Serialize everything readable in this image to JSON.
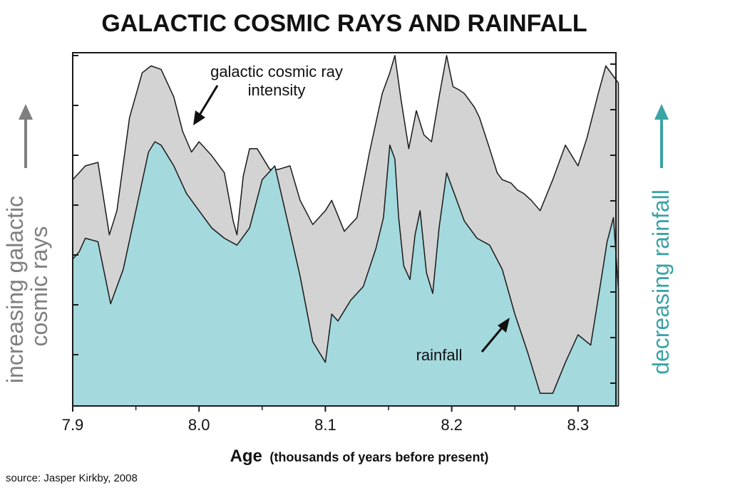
{
  "chart_data": {
    "type": "area",
    "title": "GALACTIC COSMIC RAYS AND RAINFALL",
    "xlabel": "Age",
    "xlabel_note": "(thousands of years before present)",
    "xlim": [
      7.9,
      8.33
    ],
    "xticks": [
      7.9,
      8.0,
      8.1,
      8.2,
      8.3
    ],
    "xtick_labels": [
      "7.9",
      "8.0",
      "8.1",
      "8.2",
      "8.3"
    ],
    "ylabel_left": "increasing galactic cosmic rays",
    "ylabel_right": "decreasing rainfall",
    "ylim": [
      0,
      1
    ],
    "series": [
      {
        "name": "galactic cosmic ray intensity",
        "color": "#d3d3d3",
        "x": [
          7.9,
          7.905,
          7.91,
          7.92,
          7.929,
          7.935,
          7.945,
          7.955,
          7.962,
          7.97,
          7.98,
          7.987,
          7.994,
          8.0,
          8.01,
          8.02,
          8.027,
          8.03,
          8.035,
          8.04,
          8.046,
          8.056,
          8.063,
          8.072,
          8.08,
          8.09,
          8.1,
          8.105,
          8.115,
          8.125,
          8.135,
          8.145,
          8.151,
          8.155,
          8.16,
          8.166,
          8.172,
          8.178,
          8.184,
          8.19,
          8.196,
          8.201,
          8.206,
          8.21,
          8.218,
          8.222,
          8.23,
          8.236,
          8.24,
          8.247,
          8.252,
          8.257,
          8.263,
          8.27,
          8.28,
          8.29,
          8.3,
          8.307,
          8.316,
          8.322,
          8.328,
          8.332
        ],
        "values": [
          0.64,
          0.66,
          0.68,
          0.69,
          0.48,
          0.55,
          0.82,
          0.95,
          0.97,
          0.96,
          0.88,
          0.78,
          0.72,
          0.75,
          0.71,
          0.66,
          0.52,
          0.48,
          0.65,
          0.73,
          0.73,
          0.67,
          0.67,
          0.68,
          0.58,
          0.51,
          0.55,
          0.58,
          0.49,
          0.53,
          0.72,
          0.89,
          0.95,
          1.0,
          0.87,
          0.73,
          0.84,
          0.77,
          0.75,
          0.88,
          1.0,
          0.91,
          0.9,
          0.89,
          0.85,
          0.82,
          0.73,
          0.66,
          0.64,
          0.63,
          0.61,
          0.6,
          0.58,
          0.55,
          0.64,
          0.74,
          0.68,
          0.76,
          0.89,
          0.97,
          0.94,
          0.92
        ]
      },
      {
        "name": "rainfall",
        "color": "#a4d9de",
        "x": [
          7.9,
          7.905,
          7.91,
          7.92,
          7.93,
          7.94,
          7.95,
          7.96,
          7.965,
          7.97,
          7.98,
          7.99,
          8.0,
          8.01,
          8.02,
          8.03,
          8.04,
          8.05,
          8.06,
          8.07,
          8.08,
          8.09,
          8.1,
          8.105,
          8.11,
          8.12,
          8.13,
          8.14,
          8.146,
          8.151,
          8.155,
          8.158,
          8.162,
          8.167,
          8.171,
          8.175,
          8.18,
          8.185,
          8.19,
          8.193,
          8.196,
          8.2,
          8.21,
          8.22,
          8.23,
          8.24,
          8.25,
          8.26,
          8.27,
          8.28,
          8.29,
          8.3,
          8.31,
          8.317,
          8.323,
          8.328,
          8.332
        ],
        "values": [
          0.41,
          0.43,
          0.47,
          0.46,
          0.28,
          0.38,
          0.55,
          0.72,
          0.75,
          0.74,
          0.68,
          0.6,
          0.55,
          0.5,
          0.47,
          0.45,
          0.5,
          0.64,
          0.68,
          0.52,
          0.36,
          0.17,
          0.11,
          0.25,
          0.23,
          0.29,
          0.33,
          0.44,
          0.53,
          0.74,
          0.7,
          0.53,
          0.39,
          0.35,
          0.48,
          0.55,
          0.37,
          0.31,
          0.5,
          0.58,
          0.66,
          0.62,
          0.52,
          0.47,
          0.45,
          0.38,
          0.25,
          0.14,
          0.02,
          0.02,
          0.11,
          0.19,
          0.16,
          0.32,
          0.46,
          0.53,
          0.32
        ]
      }
    ],
    "annotations": [
      {
        "text_lines": [
          "galactic cosmic ray",
          "intensity"
        ],
        "target": "galactic cosmic ray intensity"
      },
      {
        "text_lines": [
          "rainfall"
        ],
        "target": "rainfall"
      }
    ],
    "source": "source: Jasper Kirkby, 2008"
  },
  "colors": {
    "cosmic_fill": "#d3d3d3",
    "rain_fill": "#a4d9de",
    "outline": "#1a1a1a",
    "left_axis_label": "#7f7f7f",
    "right_axis_label": "#3aa3a6"
  }
}
